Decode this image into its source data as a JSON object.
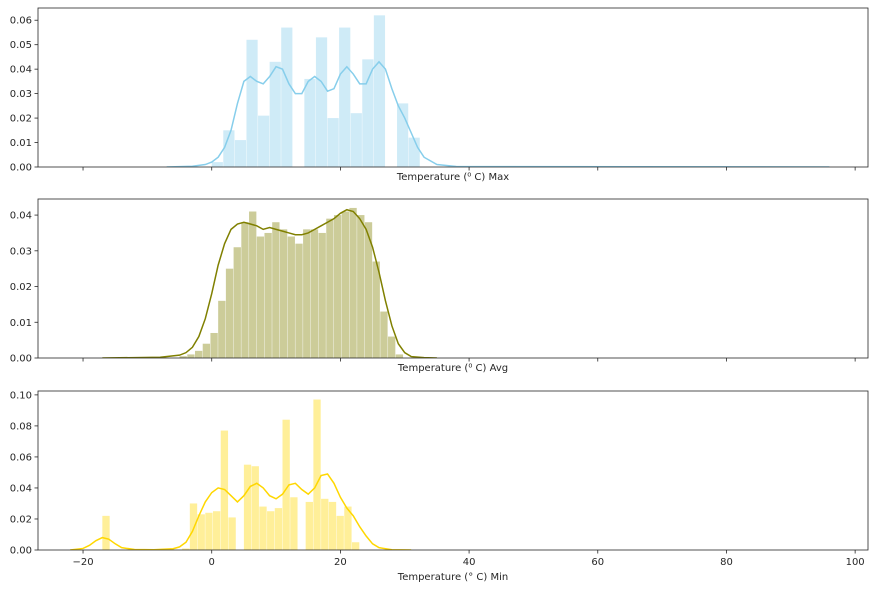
{
  "chart_data": [
    {
      "type": "bar",
      "subtype": "histogram-with-kde",
      "xlabel": "Temperature (⁰ C) Max",
      "color": "#87ceeb",
      "xlim": [
        -27,
        102
      ],
      "ylim": [
        0,
        0.065
      ],
      "xticks": [
        -20,
        0,
        20,
        40,
        60,
        80,
        100
      ],
      "show_xtick_labels": false,
      "yticks": [
        0.0,
        0.01,
        0.02,
        0.03,
        0.04,
        0.05,
        0.06
      ],
      "ytick_labels": [
        "0.00",
        "0.01",
        "0.02",
        "0.03",
        "0.04",
        "0.05",
        "0.06"
      ],
      "bins": [
        [
          0,
          1.8,
          0.002
        ],
        [
          1.8,
          3.6,
          0.015
        ],
        [
          3.6,
          5.4,
          0.011
        ],
        [
          5.4,
          7.2,
          0.052
        ],
        [
          7.2,
          9.0,
          0.021
        ],
        [
          9.0,
          10.8,
          0.043
        ],
        [
          10.8,
          12.6,
          0.057
        ],
        [
          12.6,
          14.4,
          0.0
        ],
        [
          14.4,
          16.2,
          0.036
        ],
        [
          16.2,
          18.0,
          0.053
        ],
        [
          18.0,
          19.8,
          0.02
        ],
        [
          19.8,
          21.6,
          0.057
        ],
        [
          21.6,
          23.4,
          0.022
        ],
        [
          23.4,
          25.2,
          0.044
        ],
        [
          25.2,
          27.0,
          0.062
        ],
        [
          27.0,
          28.8,
          0.0
        ],
        [
          28.8,
          30.6,
          0.026
        ],
        [
          30.6,
          32.4,
          0.012
        ]
      ],
      "kde": {
        "x": [
          -7,
          -3,
          -1,
          0,
          1,
          2,
          3,
          4,
          5,
          6,
          7,
          8,
          9,
          10,
          11,
          12,
          13,
          14,
          15,
          16,
          17,
          18,
          19,
          20,
          21,
          22,
          23,
          24,
          25,
          26,
          27,
          28,
          29,
          30,
          31,
          32,
          33,
          35,
          38,
          96
        ],
        "y": [
          0.0,
          0.0003,
          0.001,
          0.002,
          0.004,
          0.008,
          0.015,
          0.026,
          0.035,
          0.037,
          0.035,
          0.034,
          0.037,
          0.041,
          0.04,
          0.034,
          0.03,
          0.03,
          0.035,
          0.037,
          0.035,
          0.031,
          0.032,
          0.038,
          0.041,
          0.038,
          0.034,
          0.034,
          0.04,
          0.043,
          0.04,
          0.032,
          0.025,
          0.02,
          0.014,
          0.008,
          0.004,
          0.001,
          0.0002,
          0.0
        ]
      }
    },
    {
      "type": "bar",
      "subtype": "histogram-with-kde",
      "xlabel": "Temperature (⁰ C) Avg",
      "color": "#808000",
      "xlim": [
        -27,
        102
      ],
      "ylim": [
        0,
        0.0445
      ],
      "xticks": [
        -20,
        0,
        20,
        40,
        60,
        80,
        100
      ],
      "show_xtick_labels": false,
      "yticks": [
        0.0,
        0.01,
        0.02,
        0.03,
        0.04
      ],
      "ytick_labels": [
        "0.00",
        "0.01",
        "0.02",
        "0.03",
        "0.04"
      ],
      "bins": [
        [
          -5.0,
          -3.8,
          0.0005
        ],
        [
          -3.8,
          -2.6,
          0.001
        ],
        [
          -2.6,
          -1.4,
          0.002
        ],
        [
          -1.4,
          -0.2,
          0.004
        ],
        [
          -0.2,
          1.0,
          0.007
        ],
        [
          1.0,
          2.2,
          0.016
        ],
        [
          2.2,
          3.4,
          0.025
        ],
        [
          3.4,
          4.6,
          0.031
        ],
        [
          4.6,
          5.8,
          0.038
        ],
        [
          5.8,
          7.0,
          0.041
        ],
        [
          7.0,
          8.2,
          0.034
        ],
        [
          8.2,
          9.4,
          0.035
        ],
        [
          9.4,
          10.6,
          0.038
        ],
        [
          10.6,
          11.8,
          0.036
        ],
        [
          11.8,
          13.0,
          0.034
        ],
        [
          13.0,
          14.2,
          0.032
        ],
        [
          14.2,
          15.4,
          0.036
        ],
        [
          15.4,
          16.6,
          0.036
        ],
        [
          16.6,
          17.8,
          0.035
        ],
        [
          17.8,
          19.0,
          0.039
        ],
        [
          19.0,
          20.2,
          0.04
        ],
        [
          20.2,
          21.4,
          0.041
        ],
        [
          21.4,
          22.6,
          0.042
        ],
        [
          22.6,
          23.8,
          0.04
        ],
        [
          23.8,
          25.0,
          0.038
        ],
        [
          25.0,
          26.2,
          0.027
        ],
        [
          26.2,
          27.4,
          0.013
        ],
        [
          27.4,
          28.6,
          0.006
        ],
        [
          28.6,
          29.8,
          0.001
        ]
      ],
      "kde": {
        "x": [
          -17,
          -8,
          -5,
          -4,
          -3,
          -2,
          -1,
          0,
          1,
          2,
          3,
          4,
          5,
          6,
          7,
          8,
          9,
          10,
          11,
          12,
          13,
          14,
          15,
          16,
          17,
          18,
          19,
          20,
          21,
          22,
          23,
          24,
          25,
          26,
          27,
          28,
          29,
          30,
          31,
          33,
          35
        ],
        "y": [
          0.0,
          0.0002,
          0.0008,
          0.0015,
          0.003,
          0.006,
          0.011,
          0.018,
          0.026,
          0.032,
          0.036,
          0.0375,
          0.038,
          0.0375,
          0.037,
          0.036,
          0.0365,
          0.036,
          0.0355,
          0.035,
          0.0345,
          0.0345,
          0.035,
          0.036,
          0.037,
          0.038,
          0.039,
          0.0405,
          0.0415,
          0.041,
          0.039,
          0.036,
          0.031,
          0.024,
          0.016,
          0.009,
          0.004,
          0.0015,
          0.0004,
          0.0001,
          0.0
        ]
      }
    },
    {
      "type": "bar",
      "subtype": "histogram-with-kde",
      "xlabel": "Temperature (° C) Min",
      "color": "#ffd700",
      "xlim": [
        -27,
        102
      ],
      "ylim": [
        0,
        0.1025
      ],
      "xticks": [
        -20,
        0,
        20,
        40,
        60,
        80,
        100
      ],
      "xtick_labels": [
        "−20",
        "0",
        "20",
        "40",
        "60",
        "80",
        "100"
      ],
      "show_xtick_labels": true,
      "yticks": [
        0.0,
        0.02,
        0.04,
        0.06,
        0.08,
        0.1
      ],
      "ytick_labels": [
        "0.00",
        "0.02",
        "0.04",
        "0.06",
        "0.08",
        "0.10"
      ],
      "bins": [
        [
          -17.0,
          -15.8,
          0.022
        ],
        [
          -4.6,
          -3.4,
          0.001
        ],
        [
          -3.4,
          -2.2,
          0.03
        ],
        [
          -2.2,
          -1.0,
          0.023
        ],
        [
          -1.0,
          0.2,
          0.024
        ],
        [
          0.2,
          1.4,
          0.025
        ],
        [
          1.4,
          2.6,
          0.077
        ],
        [
          2.6,
          3.8,
          0.021
        ],
        [
          3.8,
          5.0,
          0.0
        ],
        [
          5.0,
          6.2,
          0.055
        ],
        [
          6.2,
          7.4,
          0.054
        ],
        [
          7.4,
          8.6,
          0.028
        ],
        [
          8.6,
          9.8,
          0.025
        ],
        [
          9.8,
          11.0,
          0.027
        ],
        [
          11.0,
          12.2,
          0.084
        ],
        [
          12.2,
          13.4,
          0.034
        ],
        [
          13.4,
          14.6,
          0.0
        ],
        [
          14.6,
          15.8,
          0.031
        ],
        [
          15.8,
          17.0,
          0.097
        ],
        [
          17.0,
          18.2,
          0.033
        ],
        [
          18.2,
          19.4,
          0.031
        ],
        [
          19.4,
          20.6,
          0.022
        ],
        [
          20.6,
          21.8,
          0.028
        ],
        [
          21.8,
          23.0,
          0.005
        ]
      ],
      "kde": {
        "x": [
          -22,
          -20,
          -19,
          -18,
          -17,
          -16,
          -15,
          -14,
          -12,
          -9,
          -6,
          -5,
          -4,
          -3,
          -2,
          -1,
          0,
          1,
          2,
          3,
          4,
          5,
          6,
          7,
          8,
          9,
          10,
          11,
          12,
          13,
          14,
          15,
          16,
          17,
          18,
          19,
          20,
          21,
          22,
          23,
          24,
          25,
          26,
          28,
          31
        ],
        "y": [
          0.0,
          0.001,
          0.003,
          0.006,
          0.008,
          0.007,
          0.004,
          0.0015,
          0.0003,
          0.0002,
          0.0008,
          0.002,
          0.005,
          0.012,
          0.022,
          0.031,
          0.037,
          0.04,
          0.039,
          0.035,
          0.031,
          0.035,
          0.041,
          0.043,
          0.04,
          0.035,
          0.033,
          0.036,
          0.042,
          0.043,
          0.039,
          0.036,
          0.04,
          0.048,
          0.049,
          0.043,
          0.034,
          0.027,
          0.022,
          0.015,
          0.009,
          0.004,
          0.0015,
          0.0002,
          0.0
        ]
      }
    }
  ]
}
